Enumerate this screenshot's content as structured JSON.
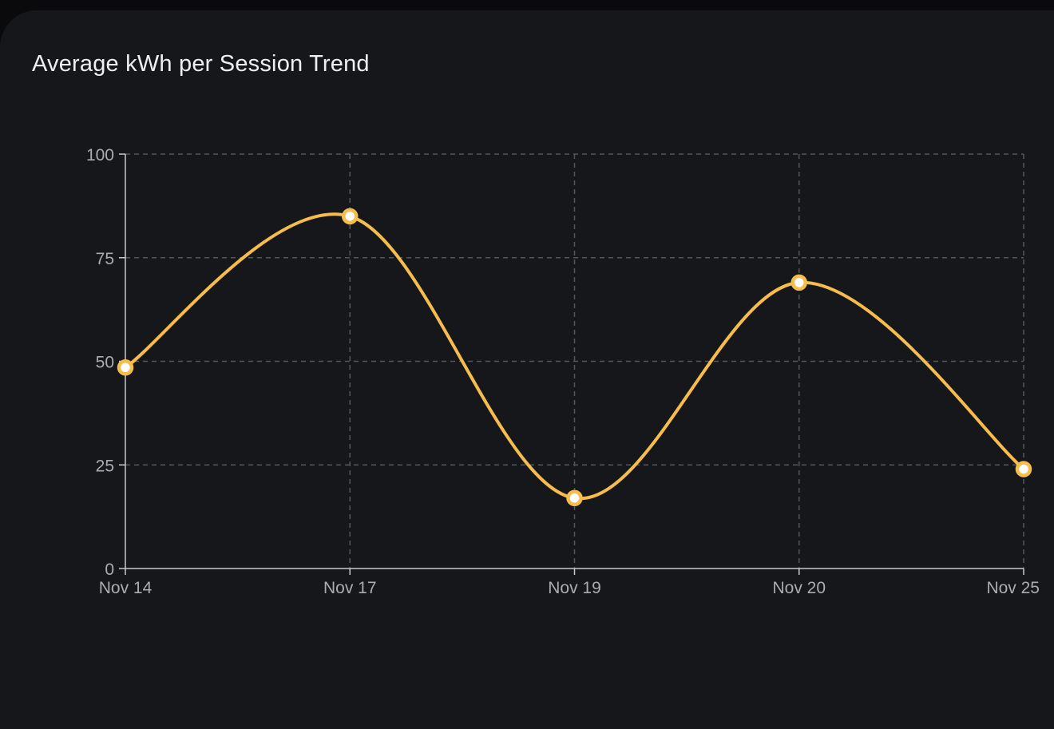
{
  "chart_data": {
    "type": "line",
    "title": "Average kWh per Session Trend",
    "categories": [
      "Nov 14",
      "Nov 17",
      "Nov 19",
      "Nov 20",
      "Nov 25"
    ],
    "values": [
      48.5,
      85,
      17,
      69,
      24
    ],
    "xlabel": "",
    "ylabel": "",
    "ylim": [
      0,
      100
    ],
    "yticks": [
      0,
      25,
      50,
      75,
      100
    ],
    "grid": true,
    "smooth": true,
    "legend": "none",
    "colors": {
      "line": "#f6bc4c",
      "marker_fill": "#ffffff",
      "grid": "#53565c",
      "axis": "#c6c9ce",
      "tick_label": "#a9adb3",
      "title": "#edeff1",
      "panel_bg": "#15171b",
      "page_bg": "#0a0a0c"
    }
  }
}
